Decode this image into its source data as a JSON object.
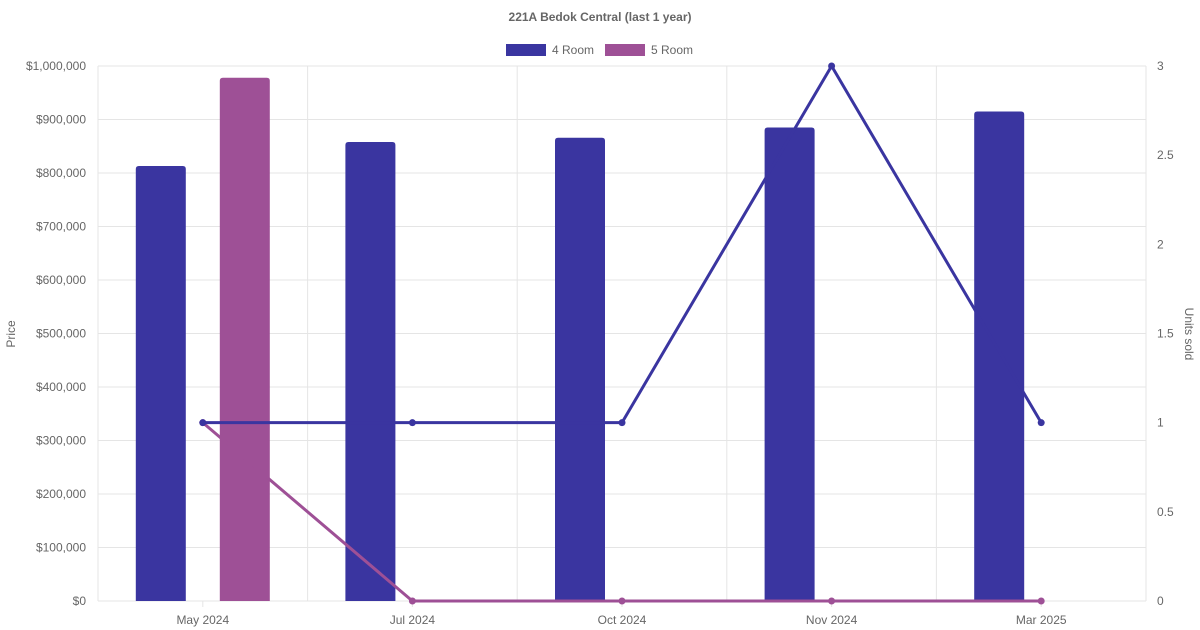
{
  "chart_data": {
    "type": "bar",
    "title": "221A Bedok Central (last 1 year)",
    "categories": [
      "May 2024",
      "Jul 2024",
      "Oct 2024",
      "Nov 2024",
      "Mar 2025"
    ],
    "y_left": {
      "label": "Price",
      "lim": [
        0,
        1000000
      ],
      "ticks": [
        "$0",
        "$100,000",
        "$200,000",
        "$300,000",
        "$400,000",
        "$500,000",
        "$600,000",
        "$700,000",
        "$800,000",
        "$900,000",
        "$1,000,000"
      ]
    },
    "y_right": {
      "label": "Units sold",
      "lim": [
        0,
        3
      ],
      "ticks": [
        "0",
        "0.5",
        "1",
        "1.5",
        "2",
        "2.5",
        "3"
      ]
    },
    "legend": {
      "position": "top"
    },
    "grid": true,
    "series": [
      {
        "name": "4 Room",
        "color": "#3a35a0",
        "price": [
          813000,
          858000,
          866000,
          885000,
          915000
        ],
        "units_sold": [
          1,
          1,
          1,
          3,
          1
        ]
      },
      {
        "name": "5 Room",
        "color": "#9e5096",
        "price": [
          978000,
          null,
          null,
          null,
          null
        ],
        "units_sold": [
          1,
          0,
          0,
          0,
          0
        ]
      }
    ]
  }
}
